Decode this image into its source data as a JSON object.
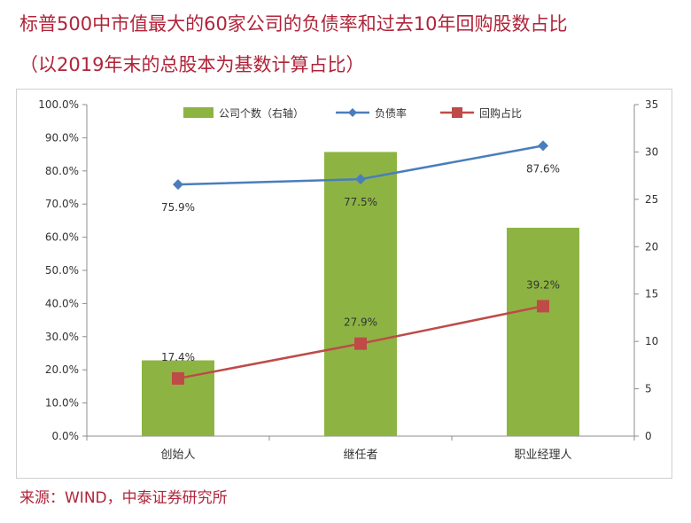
{
  "header": {
    "title_line1": "标普500中市值最大的60家公司的负债率和过去10年回购股数占比",
    "title_line2": "（以2019年末的总股本为基数计算占比）"
  },
  "footer": {
    "source": "来源：WIND，中泰证券研究所"
  },
  "colors": {
    "title": "#b0243a",
    "bar": "#8db443",
    "debt_line": "#4a7ebb",
    "buyback_line": "#be4b48"
  },
  "chart_data": {
    "type": "bar",
    "categories": [
      "创始人",
      "继任者",
      "职业经理人"
    ],
    "series": [
      {
        "name": "公司个数（右轴）",
        "type": "bar",
        "axis": "right",
        "values": [
          8,
          30,
          22
        ]
      },
      {
        "name": "负债率",
        "type": "line",
        "axis": "left",
        "values": [
          75.9,
          77.5,
          87.6
        ],
        "labels": [
          "75.9%",
          "77.5%",
          "87.6%"
        ]
      },
      {
        "name": "回购占比",
        "type": "line",
        "axis": "left",
        "values": [
          17.4,
          27.9,
          39.2
        ],
        "labels": [
          "17.4%",
          "27.9%",
          "39.2%"
        ]
      }
    ],
    "y_left": {
      "ylim": [
        0,
        100
      ],
      "ticks": [
        "0.0%",
        "10.0%",
        "20.0%",
        "30.0%",
        "40.0%",
        "50.0%",
        "60.0%",
        "70.0%",
        "80.0%",
        "90.0%",
        "100.0%"
      ]
    },
    "y_right": {
      "ylim": [
        0,
        35
      ],
      "ticks": [
        "0",
        "5",
        "10",
        "15",
        "20",
        "25",
        "30",
        "35"
      ]
    },
    "legend_position": "top",
    "grid": false
  }
}
